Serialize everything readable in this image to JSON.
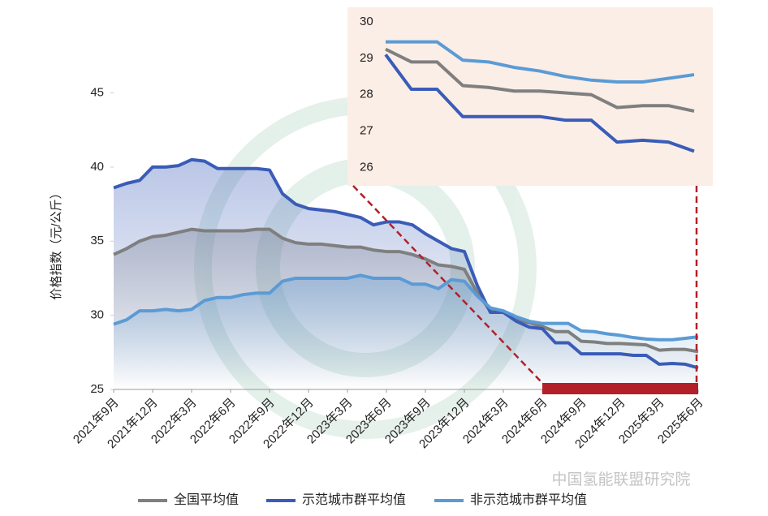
{
  "chart_data": {
    "type": "line",
    "y_label": "价格指数（元/公斤）",
    "source": "中国氢能联盟研究院",
    "categories": [
      "2021年9月",
      null,
      null,
      "2021年12月",
      null,
      null,
      "2022年3月",
      null,
      null,
      "2022年6月",
      null,
      null,
      "2022年9月",
      null,
      null,
      "2022年12月",
      null,
      null,
      "2023年3月",
      null,
      null,
      "2023年6月",
      null,
      null,
      "2023年9月",
      null,
      null,
      "2023年12月",
      null,
      null,
      "2024年3月",
      null,
      null,
      "2024年6月",
      null,
      null,
      "2024年9月",
      null,
      null,
      "2024年12月",
      null,
      null,
      "2025年3月",
      null,
      null,
      "2025年6月"
    ],
    "ylim": [
      25,
      47
    ],
    "yticks": [
      25,
      30,
      35,
      40,
      45
    ],
    "series": [
      {
        "name": "全国平均值",
        "color": "#7f7f7f",
        "values": [
          34.1,
          34.5,
          35.0,
          35.3,
          35.4,
          35.6,
          35.8,
          35.7,
          35.7,
          35.7,
          35.7,
          35.8,
          35.8,
          35.2,
          34.9,
          34.8,
          34.8,
          34.7,
          34.6,
          34.6,
          34.4,
          34.3,
          34.3,
          34.1,
          33.8,
          33.4,
          33.3,
          33.1,
          31.5,
          30.3,
          30.2,
          29.7,
          29.5,
          29.25,
          28.9,
          28.9,
          28.25,
          28.2,
          28.1,
          28.1,
          28.05,
          28.0,
          27.65,
          27.7,
          27.7,
          27.55
        ]
      },
      {
        "name": "示范城市群平均值",
        "color": "#3a5cb8",
        "values": [
          38.6,
          38.9,
          39.1,
          40.0,
          40.0,
          40.1,
          40.5,
          40.4,
          39.9,
          39.9,
          39.9,
          39.9,
          39.8,
          38.2,
          37.5,
          37.2,
          37.1,
          37.0,
          36.8,
          36.6,
          36.1,
          36.3,
          36.3,
          36.1,
          35.5,
          35.0,
          34.5,
          34.3,
          32.0,
          30.2,
          30.2,
          29.6,
          29.2,
          29.1,
          28.15,
          28.15,
          27.4,
          27.4,
          27.4,
          27.4,
          27.3,
          27.3,
          26.7,
          26.75,
          26.7,
          26.45
        ]
      },
      {
        "name": "非示范城市群平均值",
        "color": "#5b9bd5",
        "values": [
          29.4,
          29.7,
          30.3,
          30.3,
          30.4,
          30.3,
          30.4,
          31.0,
          31.2,
          31.2,
          31.4,
          31.5,
          31.5,
          32.3,
          32.5,
          32.5,
          32.5,
          32.5,
          32.5,
          32.7,
          32.5,
          32.5,
          32.5,
          32.1,
          32.1,
          31.8,
          32.4,
          32.3,
          31.3,
          30.5,
          30.3,
          29.9,
          29.6,
          29.45,
          29.45,
          29.45,
          28.95,
          28.9,
          28.75,
          28.65,
          28.5,
          28.4,
          28.35,
          28.35,
          28.45,
          28.55
        ]
      }
    ],
    "inset": {
      "xrange": [
        "2024年6月",
        "2025年6月"
      ],
      "ylim": [
        25.5,
        30.4
      ],
      "yticks": [
        26,
        27,
        28,
        29,
        30
      ],
      "background": "#fbeee6"
    },
    "highlight_color": "#b22028"
  }
}
